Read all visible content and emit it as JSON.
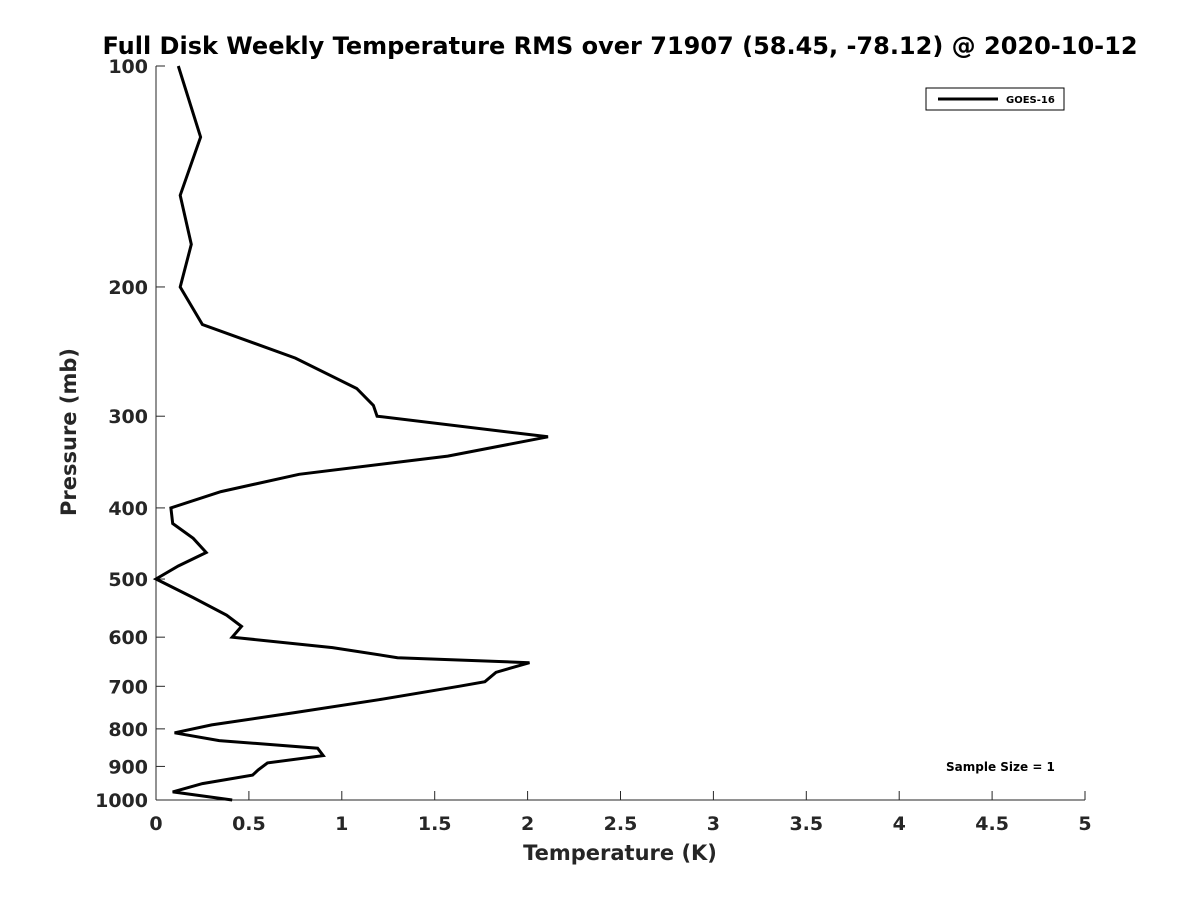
{
  "chart_data": {
    "type": "line",
    "title": "Full Disk Weekly Temperature RMS over 71907 (58.45, -78.12) @ 2020-10-12",
    "xlabel": "Temperature (K)",
    "ylabel": "Pressure (mb)",
    "xlim": [
      0,
      5
    ],
    "ylim": [
      100,
      1000
    ],
    "y_scale": "log",
    "y_reversed": true,
    "xticks": [
      "0",
      "0.5",
      "1",
      "1.5",
      "2",
      "2.5",
      "3",
      "3.5",
      "4",
      "4.5",
      "5"
    ],
    "yticks": [
      "100",
      "200",
      "300",
      "400",
      "500",
      "600",
      "700",
      "800",
      "900",
      "1000"
    ],
    "grid": false,
    "legend_position": "top-right",
    "annotation": "Sample Size = 1",
    "series": [
      {
        "name": "GOES-16",
        "color": "#000000",
        "points": [
          [
            0.12,
            100
          ],
          [
            0.24,
            125
          ],
          [
            0.13,
            150
          ],
          [
            0.19,
            175
          ],
          [
            0.13,
            200
          ],
          [
            0.25,
            225
          ],
          [
            0.75,
            250
          ],
          [
            1.08,
            275
          ],
          [
            1.17,
            290
          ],
          [
            1.19,
            300
          ],
          [
            2.11,
            320
          ],
          [
            1.57,
            340
          ],
          [
            0.77,
            360
          ],
          [
            0.35,
            380
          ],
          [
            0.08,
            400
          ],
          [
            0.09,
            420
          ],
          [
            0.2,
            440
          ],
          [
            0.27,
            460
          ],
          [
            0.12,
            480
          ],
          [
            0.0,
            500
          ],
          [
            0.2,
            530
          ],
          [
            0.38,
            560
          ],
          [
            0.46,
            580
          ],
          [
            0.41,
            600
          ],
          [
            0.95,
            620
          ],
          [
            1.3,
            640
          ],
          [
            2.01,
            650
          ],
          [
            1.83,
            670
          ],
          [
            1.77,
            690
          ],
          [
            1.63,
            700
          ],
          [
            1.2,
            730
          ],
          [
            0.75,
            760
          ],
          [
            0.3,
            790
          ],
          [
            0.1,
            810
          ],
          [
            0.34,
            830
          ],
          [
            0.87,
            850
          ],
          [
            0.9,
            870
          ],
          [
            0.6,
            890
          ],
          [
            0.55,
            910
          ],
          [
            0.52,
            925
          ],
          [
            0.25,
            950
          ],
          [
            0.09,
            975
          ],
          [
            0.41,
            1000
          ]
        ]
      }
    ]
  }
}
